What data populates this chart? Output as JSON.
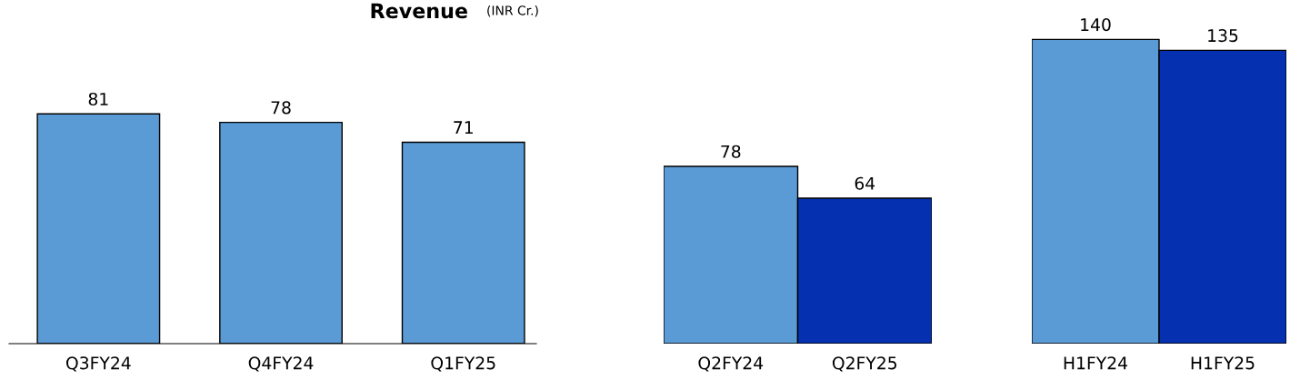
{
  "chart_data": [
    {
      "type": "bar",
      "title": "Revenue",
      "subtitle": "(INR Cr.)",
      "categories": [
        "Q3FY24",
        "Q4FY24",
        "Q1FY25"
      ],
      "values": [
        81,
        78,
        71
      ],
      "colors": [
        "#5b9bd5",
        "#5b9bd5",
        "#5b9bd5"
      ],
      "data_labels": true
    },
    {
      "type": "bar",
      "categories": [
        "Q2FY24",
        "Q2FY25"
      ],
      "values": [
        78,
        64
      ],
      "colors": [
        "#5b9bd5",
        "#0530b0"
      ],
      "data_labels": true
    },
    {
      "type": "bar",
      "categories": [
        "H1FY24",
        "H1FY25"
      ],
      "values": [
        140,
        135
      ],
      "colors": [
        "#5b9bd5",
        "#0530b0"
      ],
      "data_labels": true
    }
  ]
}
